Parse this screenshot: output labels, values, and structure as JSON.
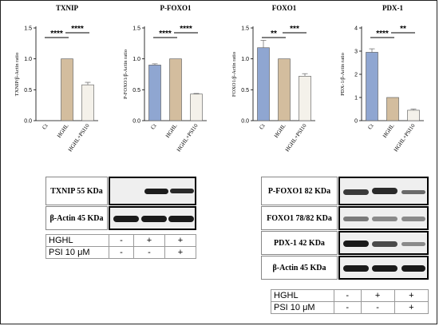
{
  "chart_data": [
    {
      "type": "bar",
      "title": "TXNIP",
      "ylabel": "TXNIP/β-Actin ratio",
      "categories": [
        "Ct",
        "HGHL",
        "HGHL+PSI10"
      ],
      "values": [
        0,
        1.0,
        0.58
      ],
      "errors": [
        0,
        0,
        0.04
      ],
      "ylim": [
        0,
        1.5
      ],
      "yticks": [
        0.0,
        0.5,
        1.0,
        1.5
      ],
      "significance": [
        {
          "pair": [
            0,
            1
          ],
          "label": "****"
        },
        {
          "pair": [
            1,
            2
          ],
          "label": "****"
        }
      ]
    },
    {
      "type": "bar",
      "title": "P-FOXO1",
      "ylabel": "P-FOXO1/β-Actin ratio",
      "categories": [
        "Ct",
        "HGHL",
        "HGHL+PSI10"
      ],
      "values": [
        0.9,
        1.0,
        0.43
      ],
      "errors": [
        0.02,
        0,
        0.01
      ],
      "ylim": [
        0,
        1.5
      ],
      "yticks": [
        0.0,
        0.5,
        1.0,
        1.5
      ],
      "significance": [
        {
          "pair": [
            0,
            1
          ],
          "label": "****"
        },
        {
          "pair": [
            1,
            2
          ],
          "label": "****"
        }
      ]
    },
    {
      "type": "bar",
      "title": "FOXO1",
      "ylabel": "FOXO1/β-Actin ratio",
      "categories": [
        "Ct",
        "HGHL",
        "HGHL+PSI10"
      ],
      "values": [
        1.18,
        1.0,
        0.72
      ],
      "errors": [
        0.12,
        0,
        0.04
      ],
      "ylim": [
        0,
        1.5
      ],
      "yticks": [
        0.0,
        0.5,
        1.0,
        1.5
      ],
      "significance": [
        {
          "pair": [
            0,
            1
          ],
          "label": "**"
        },
        {
          "pair": [
            1,
            2
          ],
          "label": "***"
        }
      ]
    },
    {
      "type": "bar",
      "title": "PDX-1",
      "ylabel": "PDX-1/β-Actin ratio",
      "categories": [
        "Ct",
        "HGHL",
        "HGHL+PSI10"
      ],
      "values": [
        2.95,
        1.0,
        0.45
      ],
      "errors": [
        0.15,
        0,
        0.05
      ],
      "ylim": [
        0,
        4
      ],
      "yticks": [
        0,
        1,
        2,
        3,
        4
      ],
      "significance": [
        {
          "pair": [
            0,
            1
          ],
          "label": "****"
        },
        {
          "pair": [
            1,
            2
          ],
          "label": "**"
        }
      ]
    }
  ],
  "colors": {
    "ct": "#8fa6d1",
    "hghl": "#d3bd9e",
    "psi": "#f4f1ea",
    "edge": "#555555"
  },
  "left_blot": {
    "rows": [
      {
        "label": "TXNIP 55 KDa"
      },
      {
        "label": "β-Actin 45 KDa"
      }
    ],
    "conditions": [
      {
        "name": "HGHL",
        "marks": [
          "-",
          "+",
          "+"
        ]
      },
      {
        "name": "PSI 10 μM",
        "marks": [
          "-",
          "-",
          "+"
        ]
      }
    ]
  },
  "right_blot": {
    "rows": [
      {
        "label": "P-FOXO1 82 KDa"
      },
      {
        "label": "FOXO1 78/82 KDa"
      },
      {
        "label": "PDX-1 42 KDa"
      },
      {
        "label": "β-Actin 45 KDa"
      }
    ],
    "conditions": [
      {
        "name": "HGHL",
        "marks": [
          "-",
          "+",
          "+"
        ]
      },
      {
        "name": "PSI 10 μM",
        "marks": [
          "-",
          "-",
          "+"
        ]
      }
    ]
  }
}
